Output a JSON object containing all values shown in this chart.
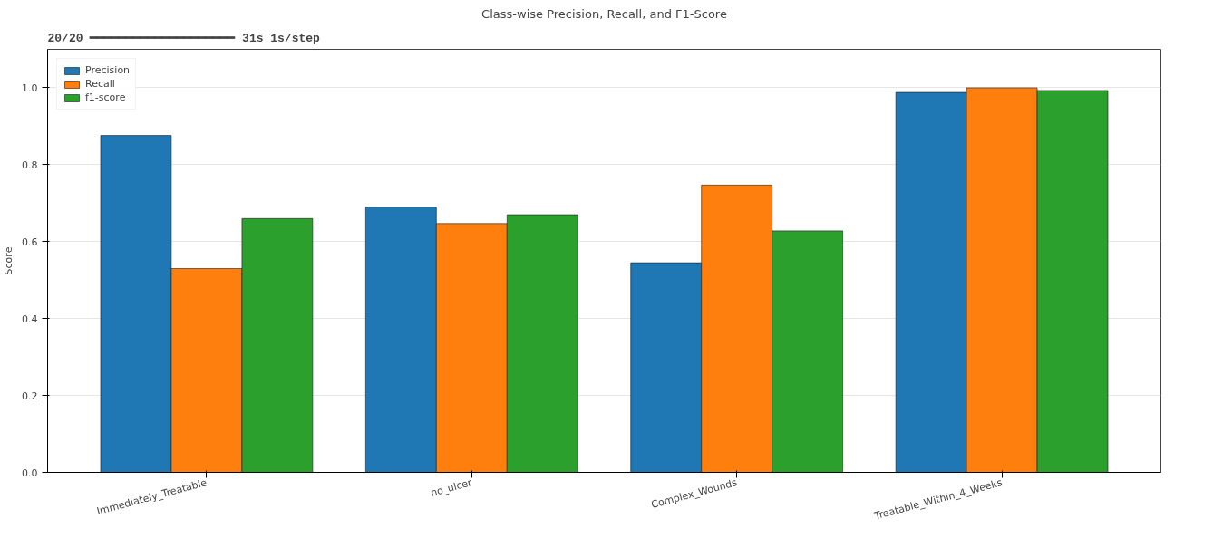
{
  "chart_data": {
    "type": "bar",
    "title": "Class-wise Precision, Recall, and F1-Score",
    "ylabel": "Score",
    "annotations": [
      "20/20 ━━━━━━━━━━━━━━━━━━━━ 31s 1s/step"
    ],
    "categories": [
      "Immediately_Treatable",
      "no_ulcer",
      "Complex_Wounds",
      "Treatable_Within_4_Weeks"
    ],
    "series": [
      {
        "name": "Precision",
        "color": "#1f77b4",
        "values": [
          0.876,
          0.69,
          0.545,
          0.988
        ]
      },
      {
        "name": "Recall",
        "color": "#ff7f0e",
        "values": [
          0.53,
          0.647,
          0.747,
          1.0
        ]
      },
      {
        "name": "f1-score",
        "color": "#2ca02c",
        "values": [
          0.66,
          0.67,
          0.628,
          0.993
        ]
      }
    ],
    "ylim": [
      0,
      1.1
    ],
    "yticks": [
      {
        "value": 0,
        "label": "0.0"
      },
      0.2,
      0.4,
      0.6,
      0.8,
      {
        "value": 1,
        "label": "1.0"
      }
    ],
    "grid": "y",
    "legend": "top left"
  }
}
